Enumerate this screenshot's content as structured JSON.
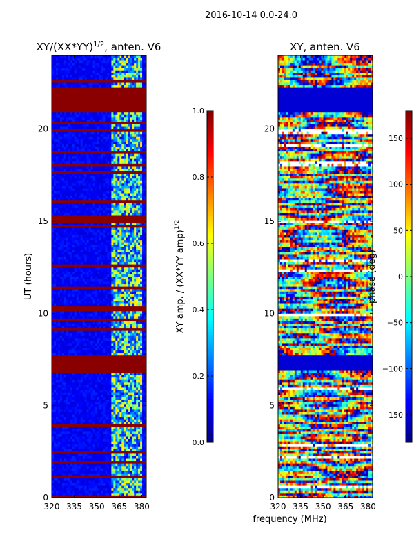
{
  "figure": {
    "suptitle": "2016-10-14 0.0-24.0",
    "shared_xlabel": "frequency (MHz)"
  },
  "chart_data": [
    {
      "type": "heatmap",
      "title_main": "XY/(XX*YY)",
      "title_sup": "1/2",
      "title_tail": ", anten. V6",
      "xlabel": "",
      "ylabel": "UT (hours)",
      "xlim": [
        320,
        383
      ],
      "ylim": [
        0,
        24
      ],
      "xticks": [
        320,
        335,
        350,
        365,
        380
      ],
      "xtick_labels": [
        "320",
        "335",
        "350",
        "365",
        "380"
      ],
      "yticks": [
        0,
        5,
        10,
        15,
        20
      ],
      "ytick_labels": [
        "0",
        "5",
        "10",
        "15",
        "20"
      ],
      "colorbar": {
        "label_main": "XY amp. / (XX*YY amp)",
        "label_sup": "1/2",
        "range": [
          0,
          1
        ],
        "ticks": [
          0.0,
          0.2,
          0.4,
          0.6,
          0.8,
          1.0
        ],
        "tick_labels": [
          "0.0",
          "0.2",
          "0.4",
          "0.6",
          "0.8",
          "1.0"
        ],
        "colormap": "jet"
      },
      "bad_time_bands_hours": [
        [
          7.0,
          7.8
        ],
        [
          15.0,
          15.3
        ],
        [
          14.6,
          14.8
        ],
        [
          21.0,
          22.3
        ],
        [
          0.0,
          0.1
        ]
      ],
      "bright_frequency_range_mhz": [
        360,
        380
      ],
      "bright_value": 0.55,
      "background_value": 0.12
    },
    {
      "type": "heatmap",
      "title": "XY, anten. V6",
      "xlabel": "frequency (MHz)",
      "ylabel": "",
      "xlim": [
        320,
        383
      ],
      "ylim": [
        0,
        24
      ],
      "xticks": [
        320,
        335,
        350,
        365,
        380
      ],
      "xtick_labels": [
        "320",
        "335",
        "350",
        "365",
        "380"
      ],
      "yticks": [
        0,
        5,
        10,
        15,
        20
      ],
      "ytick_labels": [
        "0",
        "5",
        "10",
        "15",
        "20"
      ],
      "colorbar": {
        "label": "phase (deg)",
        "range": [
          -180,
          180
        ],
        "ticks": [
          -150,
          -100,
          -50,
          0,
          50,
          100,
          150
        ],
        "tick_labels": [
          "−150",
          "−100",
          "−50",
          "0",
          "50",
          "100",
          "150"
        ],
        "colormap": "jet"
      },
      "flat_time_bands_hours": [
        [
          7.0,
          7.8
        ],
        [
          21.0,
          22.3
        ]
      ],
      "flat_value_deg": -150
    }
  ]
}
